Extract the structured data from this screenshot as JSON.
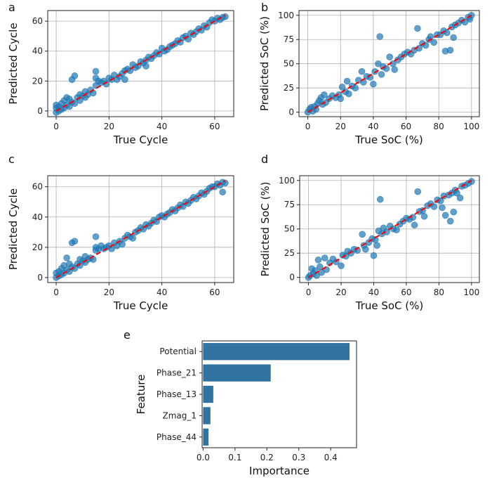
{
  "chart_data": [
    {
      "panel": "a",
      "type": "scatter",
      "xlabel": "True Cycle",
      "ylabel": "Predicted Cycle",
      "xlim": [
        -3.2,
        67.2
      ],
      "ylim": [
        -3.8,
        67.1
      ],
      "xticks": [
        0,
        20,
        40,
        60
      ],
      "yticks": [
        0,
        20,
        40,
        60
      ],
      "grid": true,
      "reference_line": [
        [
          0,
          0
        ],
        [
          64,
          64
        ]
      ],
      "point_color": "#1f77b4",
      "line_color": "#ff0000",
      "points": [
        [
          0,
          -1
        ],
        [
          0,
          2
        ],
        [
          0,
          4
        ],
        [
          1,
          0
        ],
        [
          1,
          3
        ],
        [
          2,
          1
        ],
        [
          2,
          5
        ],
        [
          3,
          2
        ],
        [
          3,
          7
        ],
        [
          4,
          4
        ],
        [
          4,
          9
        ],
        [
          5,
          3
        ],
        [
          5,
          8
        ],
        [
          6,
          6
        ],
        [
          6,
          21
        ],
        [
          7,
          23.5
        ],
        [
          7,
          5
        ],
        [
          8,
          9
        ],
        [
          9,
          7
        ],
        [
          9,
          11
        ],
        [
          10,
          10
        ],
        [
          11,
          9
        ],
        [
          11,
          13
        ],
        [
          12,
          11
        ],
        [
          13,
          14
        ],
        [
          14,
          12
        ],
        [
          15,
          17
        ],
        [
          15,
          22
        ],
        [
          15,
          26.5
        ],
        [
          16,
          20
        ],
        [
          17,
          19
        ],
        [
          18,
          20
        ],
        [
          19,
          18
        ],
        [
          20,
          22
        ],
        [
          21,
          21
        ],
        [
          22,
          24
        ],
        [
          23,
          21
        ],
        [
          24,
          23
        ],
        [
          25,
          25
        ],
        [
          26,
          21
        ],
        [
          26,
          27
        ],
        [
          27,
          28
        ],
        [
          28,
          27
        ],
        [
          29,
          31
        ],
        [
          30,
          29
        ],
        [
          31,
          30
        ],
        [
          32,
          33
        ],
        [
          33,
          32
        ],
        [
          34,
          34
        ],
        [
          34,
          30
        ],
        [
          35,
          36
        ],
        [
          36,
          35
        ],
        [
          37,
          37
        ],
        [
          38,
          39
        ],
        [
          39,
          38
        ],
        [
          40,
          42
        ],
        [
          41,
          40
        ],
        [
          42,
          41
        ],
        [
          43,
          43
        ],
        [
          44,
          44
        ],
        [
          45,
          45
        ],
        [
          46,
          47
        ],
        [
          47,
          46
        ],
        [
          48,
          49
        ],
        [
          49,
          50
        ],
        [
          50,
          48
        ],
        [
          51,
          52
        ],
        [
          52,
          51
        ],
        [
          53,
          53
        ],
        [
          54,
          55
        ],
        [
          55,
          54
        ],
        [
          56,
          57
        ],
        [
          57,
          56
        ],
        [
          58,
          59
        ],
        [
          59,
          61
        ],
        [
          60,
          60
        ],
        [
          61,
          62
        ],
        [
          62,
          61
        ],
        [
          63,
          62.5
        ],
        [
          64,
          63
        ]
      ]
    },
    {
      "panel": "b",
      "type": "scatter",
      "xlabel": "True SoC (%)",
      "ylabel": "Predicted SoC (%)",
      "xlim": [
        -5.4,
        104.8
      ],
      "ylim": [
        -4.6,
        104.9
      ],
      "xticks": [
        0,
        20,
        40,
        60,
        80,
        100
      ],
      "yticks": [
        0,
        25,
        50,
        75,
        100
      ],
      "grid": true,
      "reference_line": [
        [
          0,
          0
        ],
        [
          100,
          100
        ]
      ],
      "point_color": "#1f77b4",
      "line_color": "#ff0000",
      "points": [
        [
          0,
          0
        ],
        [
          1,
          3
        ],
        [
          2,
          5
        ],
        [
          3,
          1
        ],
        [
          4,
          6
        ],
        [
          5,
          3
        ],
        [
          6,
          9
        ],
        [
          7,
          12
        ],
        [
          8,
          15
        ],
        [
          9,
          8
        ],
        [
          10,
          18
        ],
        [
          11,
          10
        ],
        [
          13,
          14
        ],
        [
          15,
          17
        ],
        [
          17,
          15
        ],
        [
          19,
          18
        ],
        [
          20,
          14
        ],
        [
          21,
          26
        ],
        [
          23,
          21
        ],
        [
          24,
          32
        ],
        [
          25,
          19
        ],
        [
          27,
          27
        ],
        [
          29,
          25
        ],
        [
          31,
          33
        ],
        [
          33,
          42
        ],
        [
          34,
          31
        ],
        [
          36,
          37
        ],
        [
          38,
          36
        ],
        [
          40,
          29
        ],
        [
          41,
          42
        ],
        [
          43,
          50
        ],
        [
          44,
          78
        ],
        [
          45,
          39
        ],
        [
          46,
          47
        ],
        [
          48,
          45
        ],
        [
          50,
          57
        ],
        [
          52,
          50
        ],
        [
          53,
          44
        ],
        [
          55,
          54
        ],
        [
          57,
          57
        ],
        [
          59,
          60
        ],
        [
          61,
          62
        ],
        [
          63,
          60
        ],
        [
          65,
          64
        ],
        [
          67,
          86.5
        ],
        [
          68,
          66
        ],
        [
          70,
          71
        ],
        [
          72,
          69
        ],
        [
          74,
          75
        ],
        [
          75,
          78
        ],
        [
          77,
          72
        ],
        [
          79,
          80
        ],
        [
          81,
          80
        ],
        [
          83,
          84
        ],
        [
          84,
          63
        ],
        [
          85,
          82
        ],
        [
          87,
          64
        ],
        [
          88,
          88
        ],
        [
          89,
          77
        ],
        [
          90,
          90
        ],
        [
          92,
          92
        ],
        [
          94,
          95
        ],
        [
          96,
          93
        ],
        [
          98,
          98
        ],
        [
          99,
          96
        ],
        [
          100,
          100
        ]
      ]
    },
    {
      "panel": "c",
      "type": "scatter",
      "xlabel": "True Cycle",
      "ylabel": "Predicted Cycle",
      "xlim": [
        -3.2,
        67.2
      ],
      "ylim": [
        -3.3,
        67.3
      ],
      "xticks": [
        0,
        20,
        40,
        60
      ],
      "yticks": [
        0,
        20,
        40,
        60
      ],
      "grid": true,
      "reference_line": [
        [
          0,
          0
        ],
        [
          64,
          64
        ]
      ],
      "point_color": "#1f77b4",
      "line_color": "#ff0000",
      "points": [
        [
          0,
          0
        ],
        [
          0,
          3
        ],
        [
          1,
          1
        ],
        [
          1,
          4
        ],
        [
          2,
          2
        ],
        [
          2,
          6
        ],
        [
          3,
          3
        ],
        [
          3,
          8
        ],
        [
          4,
          5
        ],
        [
          4,
          13
        ],
        [
          5,
          4
        ],
        [
          5,
          9
        ],
        [
          6,
          7
        ],
        [
          6,
          23
        ],
        [
          7,
          24
        ],
        [
          7,
          6
        ],
        [
          8,
          9
        ],
        [
          9,
          8
        ],
        [
          9,
          12
        ],
        [
          10,
          11
        ],
        [
          11,
          10
        ],
        [
          11,
          14
        ],
        [
          12,
          12
        ],
        [
          13,
          13
        ],
        [
          14,
          12
        ],
        [
          15,
          18
        ],
        [
          15,
          20
        ],
        [
          15,
          27
        ],
        [
          16,
          19
        ],
        [
          17,
          21
        ],
        [
          18,
          19
        ],
        [
          19,
          20
        ],
        [
          20,
          21
        ],
        [
          21,
          19
        ],
        [
          22,
          23
        ],
        [
          23,
          21
        ],
        [
          24,
          24
        ],
        [
          25,
          22
        ],
        [
          26,
          26
        ],
        [
          27,
          28
        ],
        [
          28,
          27
        ],
        [
          29,
          26
        ],
        [
          30,
          30
        ],
        [
          31,
          31
        ],
        [
          32,
          33
        ],
        [
          33,
          32
        ],
        [
          34,
          35
        ],
        [
          35,
          34
        ],
        [
          36,
          36
        ],
        [
          37,
          38
        ],
        [
          38,
          37
        ],
        [
          39,
          40
        ],
        [
          40,
          41
        ],
        [
          41,
          40
        ],
        [
          42,
          42
        ],
        [
          43,
          43
        ],
        [
          44,
          45
        ],
        [
          45,
          44
        ],
        [
          46,
          46
        ],
        [
          47,
          48
        ],
        [
          48,
          47
        ],
        [
          49,
          50
        ],
        [
          50,
          49
        ],
        [
          51,
          51
        ],
        [
          52,
          53
        ],
        [
          53,
          52
        ],
        [
          54,
          54
        ],
        [
          55,
          56
        ],
        [
          56,
          55
        ],
        [
          57,
          57
        ],
        [
          58,
          59
        ],
        [
          59,
          60
        ],
        [
          60,
          60
        ],
        [
          61,
          62
        ],
        [
          62,
          61
        ],
        [
          63,
          56.5
        ],
        [
          63,
          63
        ],
        [
          64,
          62.5
        ]
      ]
    },
    {
      "panel": "d",
      "type": "scatter",
      "xlabel": "True SoC (%)",
      "ylabel": "Predicted SoC (%)",
      "xlim": [
        -5.4,
        104.8
      ],
      "ylim": [
        -5.3,
        104.9
      ],
      "xticks": [
        0,
        20,
        40,
        60,
        80,
        100
      ],
      "yticks": [
        0,
        25,
        50,
        75,
        100
      ],
      "grid": true,
      "reference_line": [
        [
          0,
          0
        ],
        [
          100,
          100
        ]
      ],
      "point_color": "#1f77b4",
      "line_color": "#ff0000",
      "points": [
        [
          0,
          0
        ],
        [
          1,
          2
        ],
        [
          2,
          9
        ],
        [
          3,
          4
        ],
        [
          4,
          7
        ],
        [
          5,
          2
        ],
        [
          6,
          18
        ],
        [
          7,
          11
        ],
        [
          8,
          5
        ],
        [
          10,
          20
        ],
        [
          11,
          8
        ],
        [
          13,
          15
        ],
        [
          15,
          19
        ],
        [
          17,
          16
        ],
        [
          20,
          12
        ],
        [
          21,
          23
        ],
        [
          23,
          22
        ],
        [
          24,
          27
        ],
        [
          26,
          25
        ],
        [
          28,
          29
        ],
        [
          30,
          28
        ],
        [
          33,
          44.5
        ],
        [
          34,
          33
        ],
        [
          35,
          29
        ],
        [
          37,
          36
        ],
        [
          39,
          40
        ],
        [
          40,
          22.5
        ],
        [
          41,
          39
        ],
        [
          42,
          33
        ],
        [
          43,
          48
        ],
        [
          44,
          80.5
        ],
        [
          45,
          45
        ],
        [
          46,
          51
        ],
        [
          48,
          47
        ],
        [
          50,
          53
        ],
        [
          52,
          50
        ],
        [
          54,
          49
        ],
        [
          56,
          55
        ],
        [
          58,
          58
        ],
        [
          60,
          61
        ],
        [
          62,
          60
        ],
        [
          64,
          62
        ],
        [
          65,
          54
        ],
        [
          67,
          88.5
        ],
        [
          68,
          68
        ],
        [
          70,
          69
        ],
        [
          71,
          63
        ],
        [
          73,
          74
        ],
        [
          75,
          76
        ],
        [
          77,
          73
        ],
        [
          79,
          80
        ],
        [
          81,
          79
        ],
        [
          82,
          72
        ],
        [
          83,
          84
        ],
        [
          84,
          64
        ],
        [
          86,
          85
        ],
        [
          87,
          58
        ],
        [
          88,
          87
        ],
        [
          89,
          67.5
        ],
        [
          90,
          90
        ],
        [
          91,
          87
        ],
        [
          93,
          82
        ],
        [
          94,
          94
        ],
        [
          96,
          95
        ],
        [
          98,
          97
        ],
        [
          100,
          99
        ]
      ]
    },
    {
      "panel": "e",
      "type": "bar",
      "orientation": "horizontal",
      "xlabel": "Importance",
      "ylabel": "Feature",
      "categories": [
        "Potential",
        "Phase_21",
        "Phase_13",
        "Zmag_1",
        "Phase_44"
      ],
      "values": [
        0.459,
        0.212,
        0.032,
        0.023,
        0.017
      ],
      "xlim": [
        -0.003,
        0.481
      ],
      "xticks": [
        0.0,
        0.1,
        0.2,
        0.3,
        0.4
      ],
      "grid": false,
      "bar_color": "#3274a1"
    }
  ]
}
